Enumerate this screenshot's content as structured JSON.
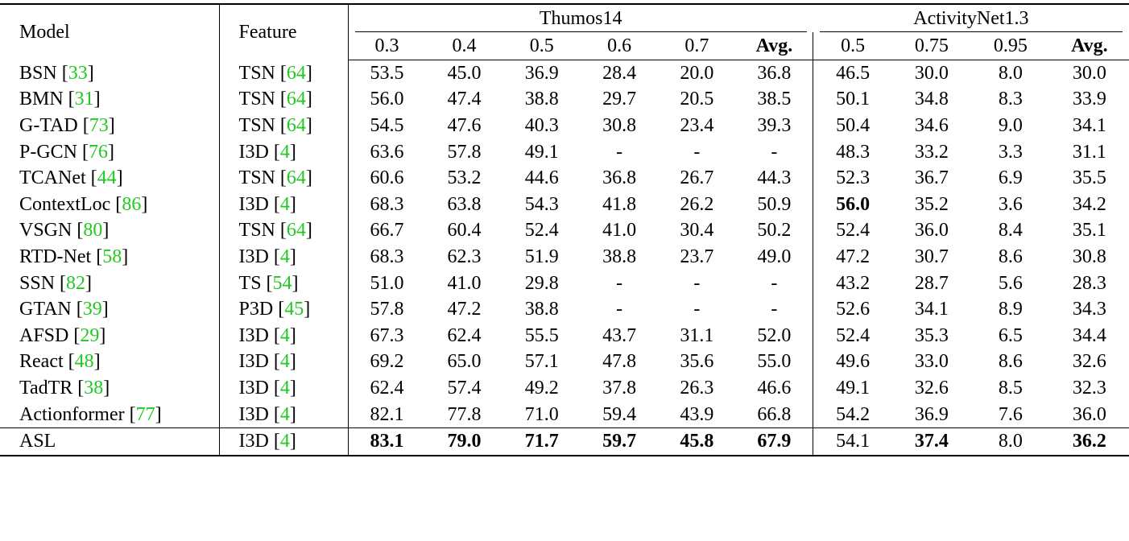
{
  "header": {
    "model": "Model",
    "feature": "Feature",
    "groups": [
      {
        "name": "Thumos14",
        "columns": [
          "0.3",
          "0.4",
          "0.5",
          "0.6",
          "0.7",
          "Avg."
        ]
      },
      {
        "name": "ActivityNet1.3",
        "columns": [
          "0.5",
          "0.75",
          "0.95",
          "Avg."
        ]
      }
    ]
  },
  "bold_columns": [
    "Avg."
  ],
  "rows": [
    {
      "model": "BSN [33]",
      "feature": "TSN [64]",
      "values": [
        "53.5",
        "45.0",
        "36.9",
        "28.4",
        "20.0",
        "36.8",
        "46.5",
        "30.0",
        "8.0",
        "30.0"
      ]
    },
    {
      "model": "BMN [31]",
      "feature": "TSN [64]",
      "values": [
        "56.0",
        "47.4",
        "38.8",
        "29.7",
        "20.5",
        "38.5",
        "50.1",
        "34.8",
        "8.3",
        "33.9"
      ]
    },
    {
      "model": "G-TAD [73]",
      "feature": "TSN [64]",
      "values": [
        "54.5",
        "47.6",
        "40.3",
        "30.8",
        "23.4",
        "39.3",
        "50.4",
        "34.6",
        "9.0",
        "34.1"
      ]
    },
    {
      "model": "P-GCN [76]",
      "feature": "I3D [4]",
      "values": [
        "63.6",
        "57.8",
        "49.1",
        "-",
        "-",
        "-",
        "48.3",
        "33.2",
        "3.3",
        "31.1"
      ]
    },
    {
      "model": "TCANet [44]",
      "feature": "TSN [64]",
      "values": [
        "60.6",
        "53.2",
        "44.6",
        "36.8",
        "26.7",
        "44.3",
        "52.3",
        "36.7",
        "6.9",
        "35.5"
      ]
    },
    {
      "model": "ContextLoc [86]",
      "feature": "I3D [4]",
      "values": [
        "68.3",
        "63.8",
        "54.3",
        "41.8",
        "26.2",
        "50.9",
        "56.0",
        "35.2",
        "3.6",
        "34.2"
      ],
      "bold": [
        6
      ]
    },
    {
      "model": "VSGN [80]",
      "feature": "TSN [64]",
      "values": [
        "66.7",
        "60.4",
        "52.4",
        "41.0",
        "30.4",
        "50.2",
        "52.4",
        "36.0",
        "8.4",
        "35.1"
      ]
    },
    {
      "model": "RTD-Net [58]",
      "feature": "I3D [4]",
      "values": [
        "68.3",
        "62.3",
        "51.9",
        "38.8",
        "23.7",
        "49.0",
        "47.2",
        "30.7",
        "8.6",
        "30.8"
      ]
    },
    {
      "model": "SSN [82]",
      "feature": "TS [54]",
      "values": [
        "51.0",
        "41.0",
        "29.8",
        "-",
        "-",
        "-",
        "43.2",
        "28.7",
        "5.6",
        "28.3"
      ]
    },
    {
      "model": "GTAN [39]",
      "feature": "P3D [45]",
      "values": [
        "57.8",
        "47.2",
        "38.8",
        "-",
        "-",
        "-",
        "52.6",
        "34.1",
        "8.9",
        "34.3"
      ]
    },
    {
      "model": "AFSD [29]",
      "feature": "I3D [4]",
      "values": [
        "67.3",
        "62.4",
        "55.5",
        "43.7",
        "31.1",
        "52.0",
        "52.4",
        "35.3",
        "6.5",
        "34.4"
      ]
    },
    {
      "model": "React [48]",
      "feature": "I3D [4]",
      "values": [
        "69.2",
        "65.0",
        "57.1",
        "47.8",
        "35.6",
        "55.0",
        "49.6",
        "33.0",
        "8.6",
        "32.6"
      ]
    },
    {
      "model": "TadTR [38]",
      "feature": "I3D [4]",
      "values": [
        "62.4",
        "57.4",
        "49.2",
        "37.8",
        "26.3",
        "46.6",
        "49.1",
        "32.6",
        "8.5",
        "32.3"
      ]
    },
    {
      "model": "Actionformer [77]",
      "feature": "I3D [4]",
      "values": [
        "82.1",
        "77.8",
        "71.0",
        "59.4",
        "43.9",
        "66.8",
        "54.2",
        "36.9",
        "7.6",
        "36.0"
      ]
    },
    {
      "model": "ASL",
      "feature": "I3D [4]",
      "values": [
        "83.1",
        "79.0",
        "71.7",
        "59.7",
        "45.8",
        "67.9",
        "54.1",
        "37.4",
        "8.0",
        "36.2"
      ],
      "bold": [
        0,
        1,
        2,
        3,
        4,
        5,
        7,
        9
      ],
      "separated": true
    }
  ]
}
